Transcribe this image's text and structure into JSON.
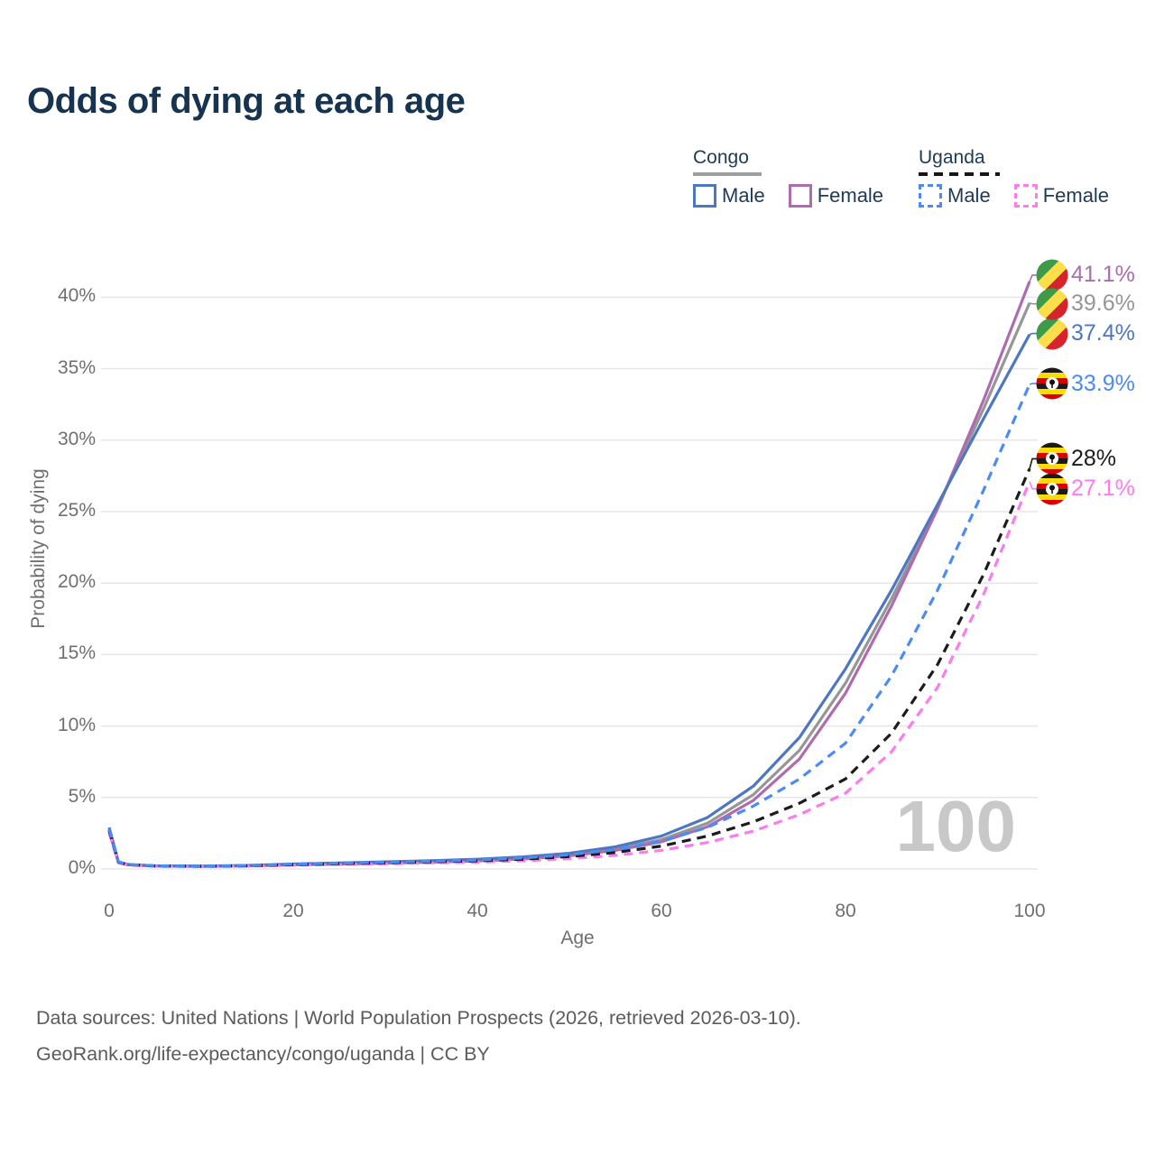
{
  "title": "Odds of dying at each age",
  "legend": {
    "groups": [
      {
        "country": "Congo",
        "line_style": "solid",
        "underline_color": "#9e9e9e",
        "items": [
          {
            "label": "Male",
            "color": "#4d77c2"
          },
          {
            "label": "Female",
            "color": "#ad6cb0"
          }
        ]
      },
      {
        "country": "Uganda",
        "line_style": "dashed",
        "underline_color": "#161616",
        "items": [
          {
            "label": "Male",
            "color": "#4b8bf5"
          },
          {
            "label": "Female",
            "color": "#fb7cee"
          }
        ]
      }
    ]
  },
  "chart_data": {
    "type": "line",
    "title": "Odds of dying at each age",
    "xlabel": "Age",
    "ylabel": "Probability of dying",
    "xlim": [
      0,
      100
    ],
    "ylim": [
      0,
      42
    ],
    "xticks": [
      0,
      20,
      40,
      60,
      80,
      100
    ],
    "yticks": [
      0,
      5,
      10,
      15,
      20,
      25,
      30,
      35,
      40
    ],
    "ytick_suffix": "%",
    "grid": "horizontal",
    "watermark": "100",
    "ages": [
      0,
      1,
      2,
      5,
      10,
      15,
      20,
      25,
      30,
      35,
      40,
      45,
      50,
      55,
      60,
      65,
      70,
      75,
      80,
      85,
      90,
      95,
      100
    ],
    "series": [
      {
        "name": "Congo Male",
        "country": "Congo",
        "sex": "Male",
        "line_style": "solid",
        "color": "#4d77c2",
        "flag": "congo",
        "end_label": "37.4%",
        "end_value": 37.4,
        "values": [
          2.9,
          0.5,
          0.32,
          0.22,
          0.2,
          0.25,
          0.35,
          0.42,
          0.5,
          0.58,
          0.68,
          0.85,
          1.1,
          1.55,
          2.3,
          3.6,
          5.8,
          9.2,
          14.0,
          19.5,
          25.5,
          31.5,
          37.4
        ]
      },
      {
        "name": "Congo Female",
        "country": "Congo",
        "sex": "Female",
        "line_style": "solid",
        "color": "#ad6cb0",
        "flag": "congo",
        "end_label": "41.1%",
        "end_value": 41.1,
        "values": [
          2.6,
          0.45,
          0.29,
          0.2,
          0.18,
          0.21,
          0.28,
          0.34,
          0.4,
          0.47,
          0.56,
          0.7,
          0.92,
          1.3,
          1.9,
          2.95,
          4.8,
          7.7,
          12.3,
          18.4,
          25.2,
          32.8,
          41.1
        ]
      },
      {
        "name": "Congo Both sexes",
        "country": "Congo",
        "sex": "Both",
        "line_style": "solid",
        "color": "#969696",
        "flag": "congo",
        "end_label": "39.6%",
        "end_value": 39.6,
        "values": [
          2.75,
          0.48,
          0.3,
          0.21,
          0.19,
          0.23,
          0.31,
          0.38,
          0.45,
          0.52,
          0.62,
          0.77,
          1.0,
          1.4,
          2.05,
          3.2,
          5.2,
          8.3,
          13.0,
          18.9,
          25.3,
          32.2,
          39.6
        ]
      },
      {
        "name": "Uganda Male",
        "country": "Uganda",
        "sex": "Male",
        "line_style": "dashed",
        "color": "#4b8bf5",
        "flag": "uganda",
        "end_label": "33.9%",
        "end_value": 33.9,
        "values": [
          2.8,
          0.5,
          0.31,
          0.22,
          0.2,
          0.24,
          0.33,
          0.4,
          0.47,
          0.54,
          0.62,
          0.77,
          1.0,
          1.35,
          1.95,
          2.9,
          4.4,
          6.3,
          8.8,
          13.5,
          19.5,
          26.5,
          33.9
        ]
      },
      {
        "name": "Uganda Female",
        "country": "Uganda",
        "sex": "Female",
        "line_style": "dashed",
        "color": "#fb7cee",
        "flag": "uganda",
        "end_label": "27.1%",
        "end_value": 27.1,
        "values": [
          2.5,
          0.44,
          0.28,
          0.19,
          0.17,
          0.2,
          0.26,
          0.31,
          0.36,
          0.42,
          0.48,
          0.57,
          0.72,
          0.95,
          1.3,
          1.85,
          2.65,
          3.8,
          5.3,
          8.2,
          12.7,
          19.2,
          27.1
        ]
      },
      {
        "name": "Uganda Both sexes",
        "country": "Uganda",
        "sex": "Both",
        "line_style": "dashed",
        "color": "#1c1c1c",
        "flag": "uganda",
        "end_label": "28%",
        "end_value": 28.0,
        "values": [
          2.7,
          0.48,
          0.3,
          0.21,
          0.19,
          0.22,
          0.3,
          0.37,
          0.43,
          0.5,
          0.57,
          0.68,
          0.87,
          1.15,
          1.6,
          2.3,
          3.3,
          4.6,
          6.3,
          9.5,
          14.3,
          20.6,
          28.0
        ]
      }
    ]
  },
  "footer": {
    "line1": "Data sources: United Nations | World Population Prospects (2026, retrieved 2026-03-10).",
    "line2": "GeoRank.org/life-expectancy/congo/uganda | CC BY"
  }
}
